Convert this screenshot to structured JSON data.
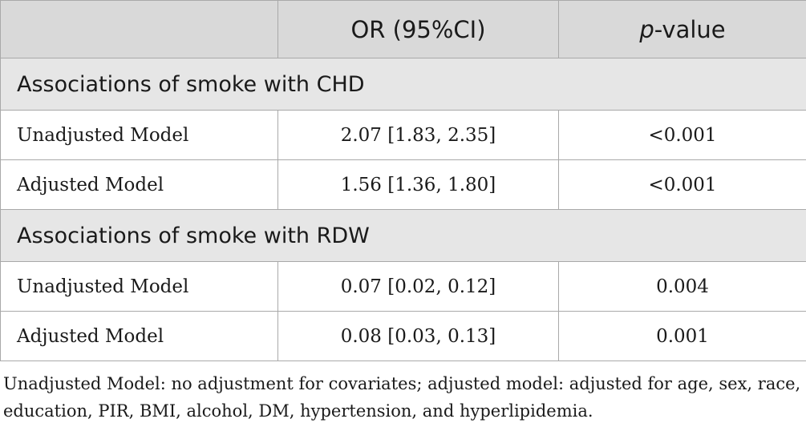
{
  "table": {
    "header": {
      "col1": "",
      "col2": "OR (95%CI)",
      "col3_italic": "p",
      "col3_rest": "-value"
    },
    "sections": [
      {
        "title": "Associations of smoke with CHD",
        "rows": [
          {
            "model": "Unadjusted Model",
            "or": "2.07 [1.83, 2.35]",
            "p": "<0.001"
          },
          {
            "model": "Adjusted Model",
            "or": "1.56 [1.36, 1.80]",
            "p": "<0.001"
          }
        ]
      },
      {
        "title": "Associations of smoke with RDW",
        "rows": [
          {
            "model": "Unadjusted Model",
            "or": "0.07 [0.02, 0.12]",
            "p": "0.004"
          },
          {
            "model": "Adjusted Model",
            "or": "0.08 [0.03, 0.13]",
            "p": "0.001"
          }
        ]
      }
    ]
  },
  "footnote": {
    "line1": "Unadjusted Model: no adjustment for covariates; adjusted model: adjusted for age, sex, race,",
    "line2": "education, PIR, BMI, alcohol, DM, hypertension, and hyperlipidemia."
  }
}
